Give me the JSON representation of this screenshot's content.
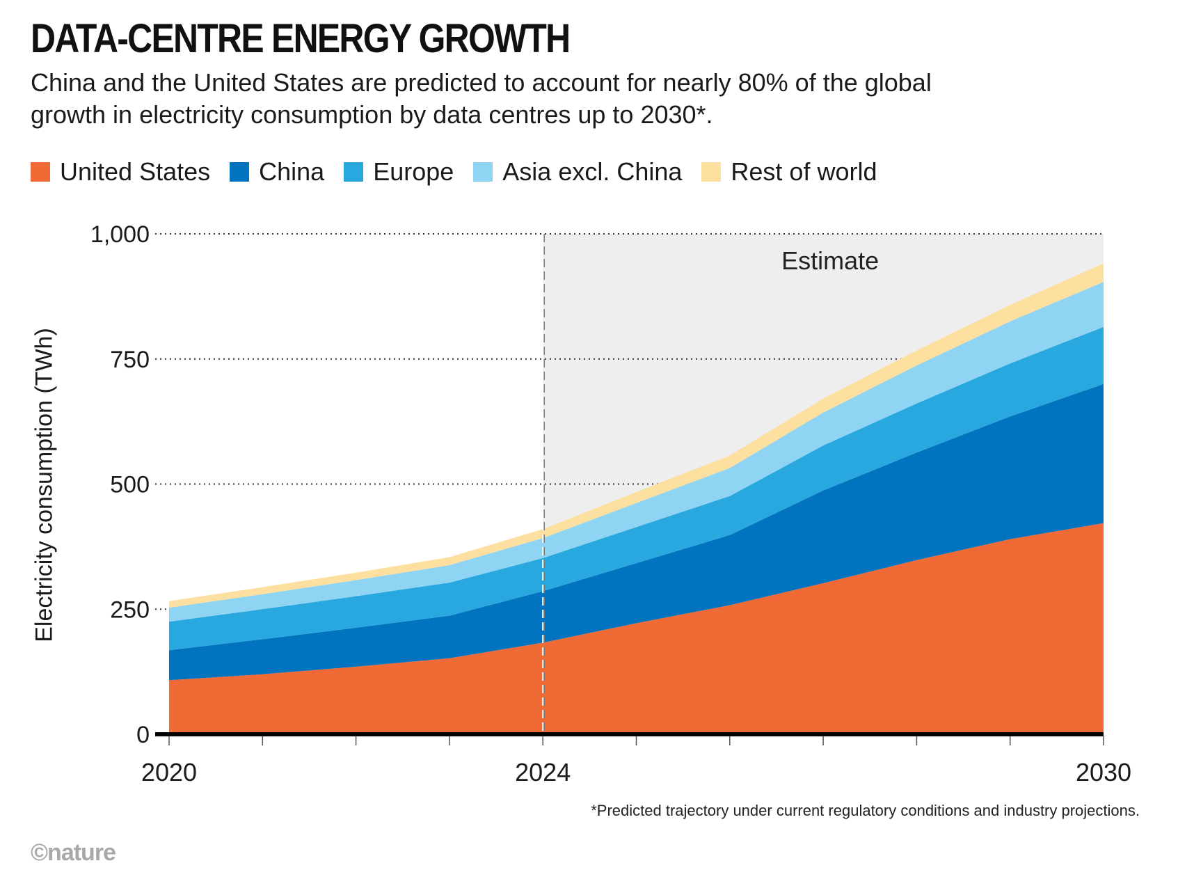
{
  "title": "DATA-CENTRE ENERGY GROWTH",
  "subtitle": "China and the United States are predicted to account for nearly 80% of the global growth in electricity consumption by data centres up to 2030*.",
  "footnote": "*Predicted trajectory under current regulatory conditions and industry projections.",
  "logo": "©nature",
  "chart_data": {
    "type": "area",
    "stacked": true,
    "title": "DATA-CENTRE ENERGY GROWTH",
    "ylabel": "Electricity consumption (TWh)",
    "xlabel": "",
    "ylim": [
      0,
      1000
    ],
    "xlim": [
      2020,
      2030
    ],
    "y_ticks": [
      0,
      250,
      500,
      750,
      1000
    ],
    "y_tick_labels": [
      "0",
      "250",
      "500",
      "750",
      "1,000"
    ],
    "x_tick_labels": [
      {
        "value": 2020,
        "label": "2020"
      },
      {
        "value": 2024,
        "label": "2024"
      },
      {
        "value": 2030,
        "label": "2030"
      }
    ],
    "grid": "horizontal dotted",
    "estimate_region": {
      "from": 2024,
      "to": 2030,
      "label": "Estimate",
      "color": "#eeeeee"
    },
    "x": [
      2020,
      2021,
      2022,
      2023,
      2024,
      2025,
      2026,
      2027,
      2028,
      2029,
      2030
    ],
    "series": [
      {
        "name": "United States",
        "color": "#f06a35",
        "values": [
          108,
          120,
          135,
          152,
          183,
          222,
          258,
          302,
          348,
          390,
          422
        ]
      },
      {
        "name": "China",
        "color": "#0273be",
        "values": [
          60,
          70,
          78,
          85,
          103,
          120,
          140,
          185,
          215,
          245,
          278
        ]
      },
      {
        "name": "Europe",
        "color": "#29a8e0",
        "values": [
          57,
          60,
          63,
          66,
          66,
          72,
          78,
          90,
          98,
          106,
          114
        ]
      },
      {
        "name": "Asia excl. China",
        "color": "#90d4f4",
        "values": [
          28,
          30,
          32,
          35,
          40,
          48,
          56,
          66,
          76,
          84,
          90
        ]
      },
      {
        "name": "Rest of world",
        "color": "#fde0a0",
        "values": [
          13,
          14,
          15,
          16,
          18,
          22,
          25,
          28,
          30,
          33,
          37
        ]
      }
    ],
    "legend_position": "top-left"
  }
}
